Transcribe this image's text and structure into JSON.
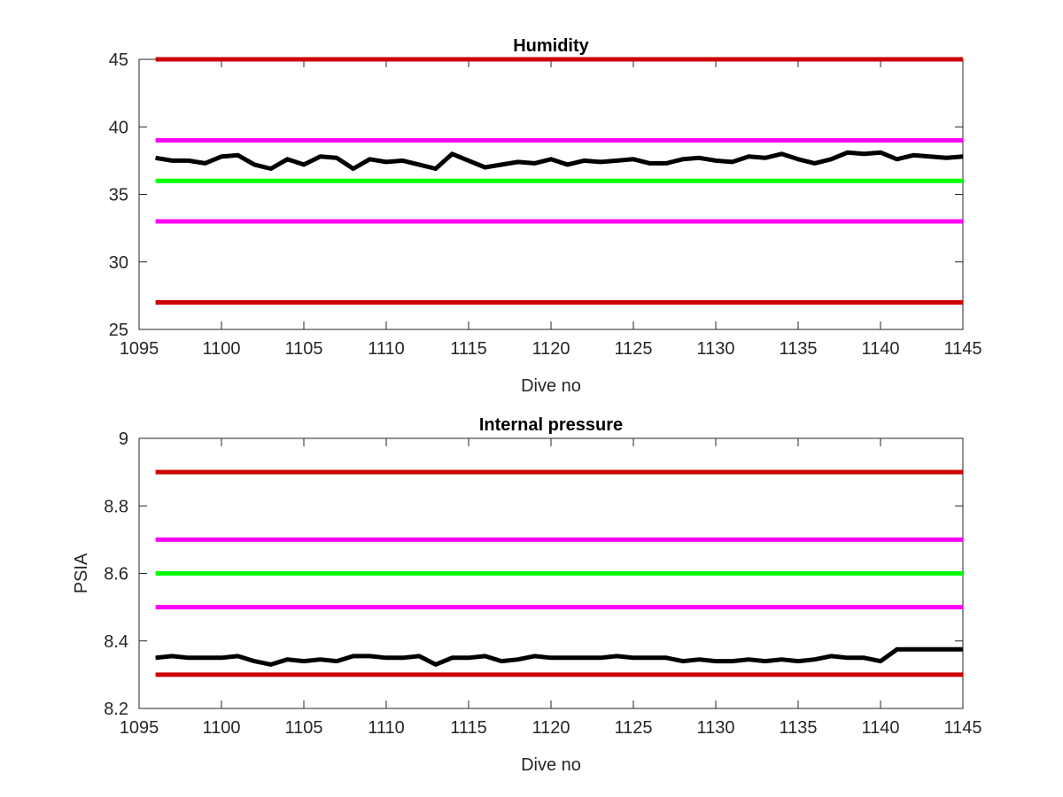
{
  "chart_data": [
    {
      "type": "line",
      "title": "Humidity",
      "xlabel": "Dive no",
      "ylabel": "",
      "xlim": [
        1095,
        1145
      ],
      "ylim": [
        25,
        45
      ],
      "xticks": [
        "1095",
        "1100",
        "1105",
        "1110",
        "1115",
        "1120",
        "1125",
        "1130",
        "1135",
        "1140",
        "1145"
      ],
      "yticks": [
        "25",
        "30",
        "35",
        "40",
        "45"
      ],
      "grid": false,
      "x": [
        1096,
        1097,
        1098,
        1099,
        1100,
        1101,
        1102,
        1103,
        1104,
        1105,
        1106,
        1107,
        1108,
        1109,
        1110,
        1111,
        1112,
        1113,
        1114,
        1115,
        1116,
        1117,
        1118,
        1119,
        1120,
        1121,
        1122,
        1123,
        1124,
        1125,
        1126,
        1127,
        1128,
        1129,
        1130,
        1131,
        1132,
        1133,
        1134,
        1135,
        1136,
        1137,
        1138,
        1139,
        1140,
        1141,
        1142,
        1143,
        1144,
        1145
      ],
      "series": [
        {
          "color": "#000000",
          "values": [
            37.7,
            37.5,
            37.5,
            37.3,
            37.8,
            37.9,
            37.2,
            36.9,
            37.6,
            37.2,
            37.8,
            37.7,
            36.9,
            37.6,
            37.4,
            37.5,
            37.2,
            36.9,
            38.0,
            37.5,
            37.0,
            37.2,
            37.4,
            37.3,
            37.6,
            37.2,
            37.5,
            37.4,
            37.5,
            37.6,
            37.3,
            37.3,
            37.6,
            37.7,
            37.5,
            37.4,
            37.8,
            37.7,
            38.0,
            37.6,
            37.3,
            37.6,
            38.1,
            38.0,
            38.1,
            37.6,
            37.9,
            37.8,
            37.7,
            37.8
          ]
        }
      ],
      "reference_lines": [
        {
          "y": 45,
          "color": "#cc0000"
        },
        {
          "y": 39,
          "color": "#ff00ff"
        },
        {
          "y": 36,
          "color": "#00ff00"
        },
        {
          "y": 33,
          "color": "#ff00ff"
        },
        {
          "y": 27,
          "color": "#cc0000"
        }
      ]
    },
    {
      "type": "line",
      "title": "Internal pressure",
      "xlabel": "Dive no",
      "ylabel": "PSIA",
      "xlim": [
        1095,
        1145
      ],
      "ylim": [
        8.2,
        9
      ],
      "xticks": [
        "1095",
        "1100",
        "1105",
        "1110",
        "1115",
        "1120",
        "1125",
        "1130",
        "1135",
        "1140",
        "1145"
      ],
      "yticks": [
        "8.2",
        "8.4",
        "8.6",
        "8.8",
        "9"
      ],
      "grid": false,
      "x": [
        1096,
        1097,
        1098,
        1099,
        1100,
        1101,
        1102,
        1103,
        1104,
        1105,
        1106,
        1107,
        1108,
        1109,
        1110,
        1111,
        1112,
        1113,
        1114,
        1115,
        1116,
        1117,
        1118,
        1119,
        1120,
        1121,
        1122,
        1123,
        1124,
        1125,
        1126,
        1127,
        1128,
        1129,
        1130,
        1131,
        1132,
        1133,
        1134,
        1135,
        1136,
        1137,
        1138,
        1139,
        1140,
        1141,
        1142,
        1143,
        1144,
        1145
      ],
      "series": [
        {
          "color": "#000000",
          "values": [
            8.35,
            8.355,
            8.35,
            8.35,
            8.35,
            8.355,
            8.34,
            8.33,
            8.345,
            8.34,
            8.345,
            8.34,
            8.355,
            8.355,
            8.35,
            8.35,
            8.355,
            8.33,
            8.35,
            8.35,
            8.355,
            8.34,
            8.345,
            8.355,
            8.35,
            8.35,
            8.35,
            8.35,
            8.355,
            8.35,
            8.35,
            8.35,
            8.34,
            8.345,
            8.34,
            8.34,
            8.345,
            8.34,
            8.345,
            8.34,
            8.345,
            8.355,
            8.35,
            8.35,
            8.34,
            8.375,
            8.375,
            8.375,
            8.375,
            8.375
          ]
        }
      ],
      "reference_lines": [
        {
          "y": 8.9,
          "color": "#cc0000"
        },
        {
          "y": 8.7,
          "color": "#ff00ff"
        },
        {
          "y": 8.6,
          "color": "#00ff00"
        },
        {
          "y": 8.5,
          "color": "#ff00ff"
        },
        {
          "y": 8.3,
          "color": "#cc0000"
        }
      ]
    }
  ]
}
